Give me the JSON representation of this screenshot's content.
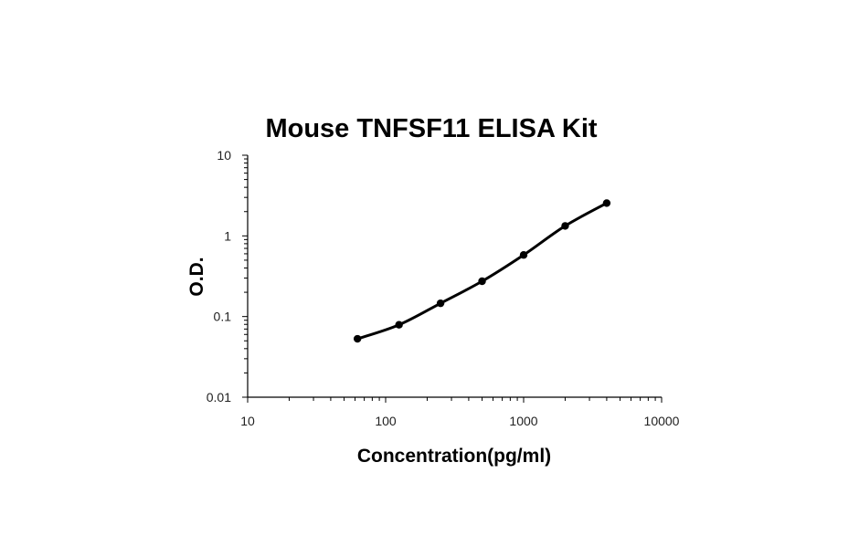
{
  "chart_data": {
    "type": "line",
    "title": "Mouse TNFSF11 ELISA Kit",
    "xlabel": "Concentration(pg/ml)",
    "ylabel": "O.D.",
    "x_scale": "log",
    "y_scale": "log",
    "xlim": [
      10,
      10000
    ],
    "ylim": [
      0.01,
      10
    ],
    "x_ticks": [
      "10",
      "100",
      "1000",
      "10000"
    ],
    "y_ticks": [
      "0.01",
      "0.1",
      "1",
      "10"
    ],
    "grid": false,
    "legend": "none",
    "series": [
      {
        "x": [
          62.5,
          125,
          250,
          500,
          1000,
          2000,
          4000
        ],
        "y": [
          0.053,
          0.079,
          0.146,
          0.274,
          0.58,
          1.33,
          2.55
        ]
      }
    ]
  }
}
